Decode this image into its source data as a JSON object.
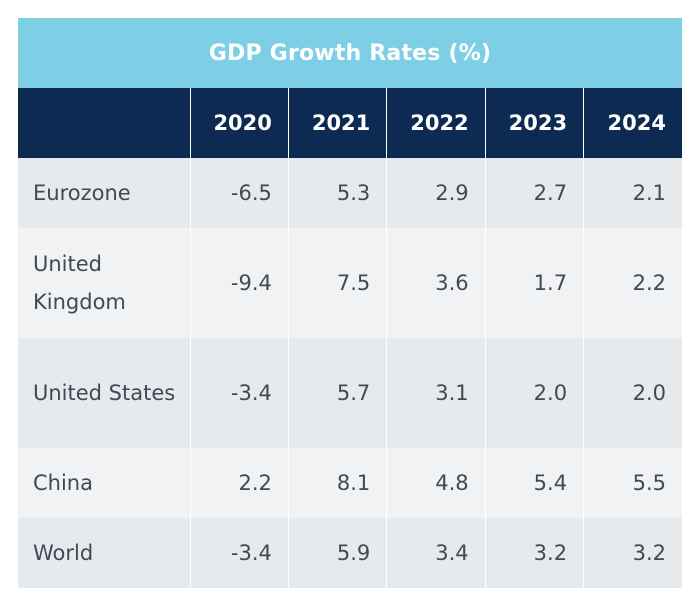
{
  "chart_data": {
    "type": "table",
    "title": "GDP Growth Rates (%)",
    "columns": [
      "2020",
      "2021",
      "2022",
      "2023",
      "2024"
    ],
    "rows": [
      {
        "label": "Eurozone",
        "values": [
          "-6.5",
          "5.3",
          "2.9",
          "2.7",
          "2.1"
        ]
      },
      {
        "label": "United Kingdom",
        "values": [
          "-9.4",
          "7.5",
          "3.6",
          "1.7",
          "2.2"
        ]
      },
      {
        "label": "United States",
        "values": [
          "-3.4",
          "5.7",
          "3.1",
          "2.0",
          "2.0"
        ]
      },
      {
        "label": "China",
        "values": [
          "2.2",
          "8.1",
          "4.8",
          "5.4",
          "5.5"
        ]
      },
      {
        "label": "World",
        "values": [
          "-3.4",
          "5.9",
          "3.4",
          "3.2",
          "3.2"
        ]
      }
    ]
  },
  "colors": {
    "title_bg": "#7dcfe6",
    "header_bg": "#0d2b52",
    "row_odd": "#e7eaed",
    "row_even": "#f1f2f4",
    "text": "#3f4a57"
  }
}
